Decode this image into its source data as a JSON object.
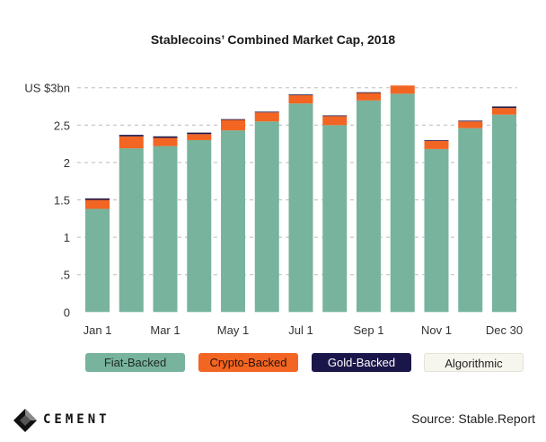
{
  "chart_data": {
    "type": "bar",
    "stacked": true,
    "title": "Stablecoins’ Combined Market Cap, 2018",
    "categories": [
      "Jan 1",
      "",
      "Mar 1",
      "",
      "May 1",
      "",
      "Jul 1",
      "",
      "Sep 1",
      "",
      "Nov 1",
      "",
      "Dec 30"
    ],
    "series": [
      {
        "name": "Fiat-Backed",
        "color": "#77b39d",
        "values": [
          1.38,
          2.19,
          2.22,
          2.3,
          2.43,
          2.55,
          2.79,
          2.5,
          2.83,
          2.92,
          2.18,
          2.46,
          2.64
        ]
      },
      {
        "name": "Crypto-Backed",
        "color": "#f26522",
        "values": [
          0.12,
          0.16,
          0.11,
          0.08,
          0.14,
          0.12,
          0.11,
          0.12,
          0.1,
          0.11,
          0.11,
          0.09,
          0.09
        ]
      },
      {
        "name": "Gold-Backed",
        "color": "#1b1649",
        "values": [
          0.02,
          0.02,
          0.02,
          0.02,
          0.01,
          0.01,
          0.01,
          0.01,
          0.01,
          0.0,
          0.01,
          0.01,
          0.02
        ]
      },
      {
        "name": "Algorithmic",
        "color": "#f7f6ee",
        "values": [
          0,
          0,
          0,
          0,
          0,
          0,
          0,
          0,
          0,
          0,
          0,
          0,
          0
        ]
      }
    ],
    "yticks": [
      {
        "v": 3,
        "label": "US $3bn"
      },
      {
        "v": 2.5,
        "label": "2.5"
      },
      {
        "v": 2,
        "label": "2"
      },
      {
        "v": 1.5,
        "label": "1.5"
      },
      {
        "v": 1,
        "label": "1"
      },
      {
        "v": 0.5,
        "label": ".5"
      },
      {
        "v": 0,
        "label": "0"
      }
    ],
    "ylim": [
      0,
      3
    ],
    "grid": true,
    "legend_placement": "bottom"
  },
  "footer": {
    "source": "Source: Stable.Report",
    "logo_text": "CEMENT"
  }
}
